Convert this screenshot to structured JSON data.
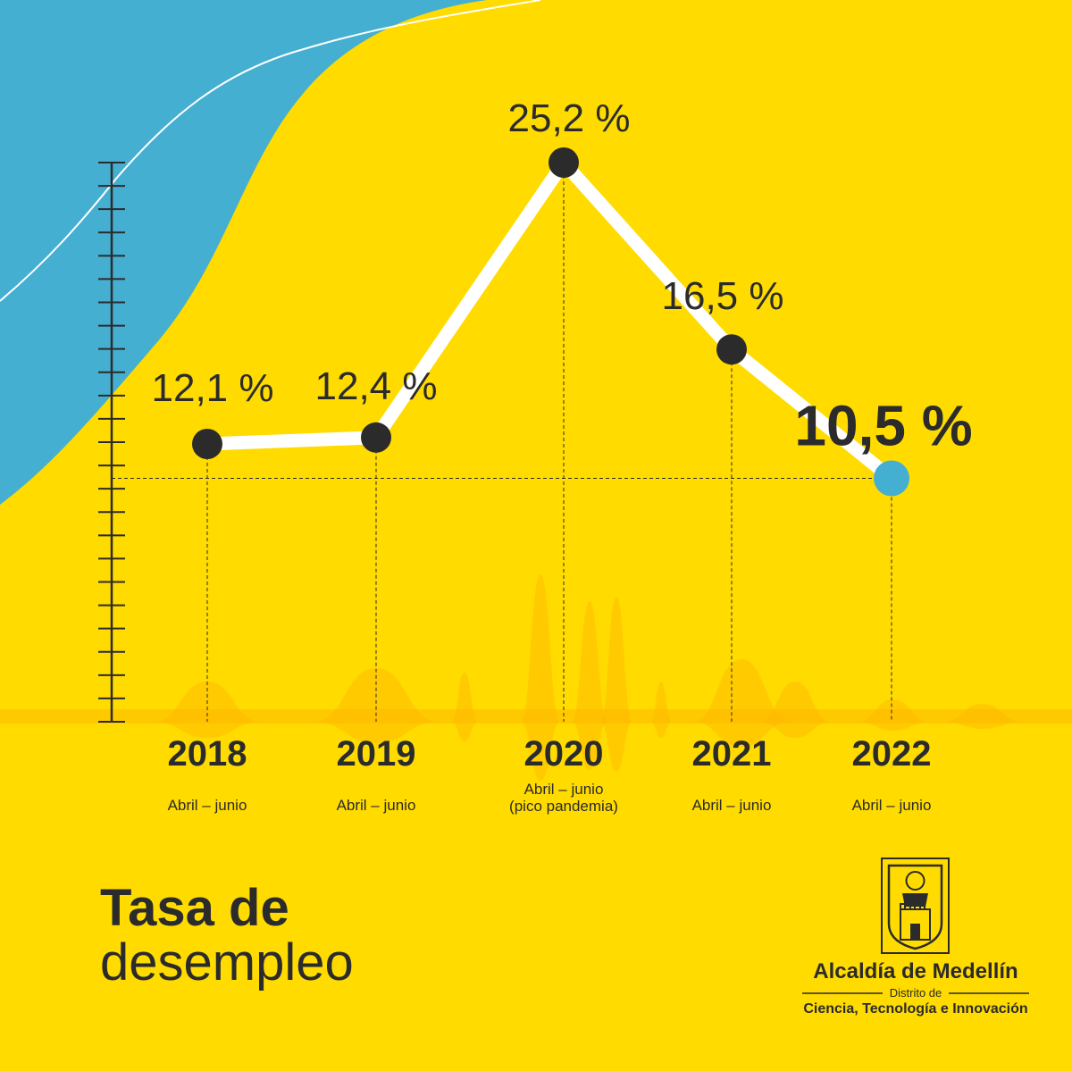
{
  "colors": {
    "background": "#FFDB00",
    "accent_blue": "#45AFD1",
    "line": "#FFFFFF",
    "marker": "#2B2B2B",
    "highlight_marker": "#45AFD1",
    "wave": "#FFB400"
  },
  "title": {
    "line1": "Tasa de",
    "line2": "desempleo"
  },
  "chart_data": {
    "type": "line",
    "x": [
      "2018",
      "2019",
      "2020",
      "2021",
      "2022"
    ],
    "periods": [
      [
        "Abril – junio"
      ],
      [
        "Abril – junio"
      ],
      [
        "Abril – junio",
        "(pico pandemia)"
      ],
      [
        "Abril – junio"
      ],
      [
        "Abril – junio"
      ]
    ],
    "series": [
      {
        "values": [
          12.1,
          12.4,
          25.2,
          16.5,
          10.5
        ]
      }
    ],
    "value_labels": [
      "12,1 %",
      "12,4 %",
      "25,2 %",
      "16,5 %",
      "10,5 %"
    ],
    "highlight_index": 4,
    "ylim": [
      0,
      30
    ],
    "grid": false
  },
  "logo": {
    "name": "Alcaldía de Medellín",
    "subtitle": "Distrito de",
    "tagline": "Ciencia, Tecnología e Innovación"
  }
}
